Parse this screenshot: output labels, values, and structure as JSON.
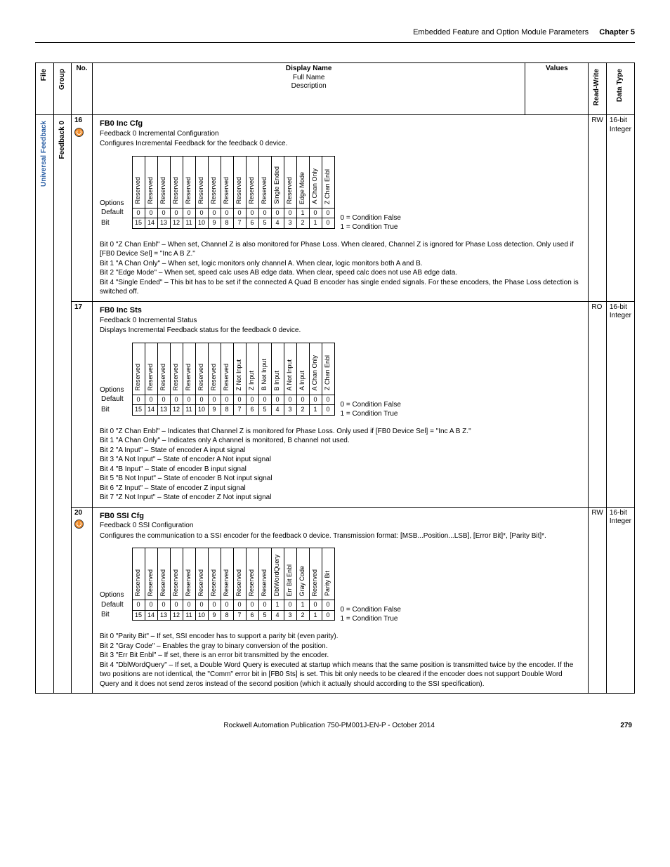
{
  "page_header": {
    "breadcrumb": "Embedded Feature and Option Module Parameters",
    "chapter": "Chapter 5"
  },
  "columns": {
    "file": "File",
    "group": "Group",
    "no": "No.",
    "display_name": "Display Name",
    "full_name": "Full Name",
    "description": "Description",
    "values": "Values",
    "rw": "Read-Write",
    "dt": "Data Type"
  },
  "file_label": "Universal Feedback",
  "group_label": "Feedback 0",
  "cond_legend": {
    "false": "0 = Condition False",
    "true": "1 = Condition True"
  },
  "bit_row_labels": {
    "options": "Options",
    "default": "Default",
    "bit": "Bit"
  },
  "params": [
    {
      "no": "16",
      "restart_icon": true,
      "rw": "RW",
      "dt1": "16-bit",
      "dt2": "Integer",
      "display_name": "FB0 Inc Cfg",
      "full_name": "Feedback 0 Incremental Configuration",
      "description": "Configures Incremental Feedback for the feedback 0 device.",
      "bits": {
        "options": [
          "Reserved",
          "Reserved",
          "Reserved",
          "Reserved",
          "Reserved",
          "Reserved",
          "Reserved",
          "Reserved",
          "Reserved",
          "Reserved",
          "Reserved",
          "Single Ended",
          "Reserved",
          "Edge Mode",
          "A Chan Only",
          "Z Chan Enbl"
        ],
        "default": [
          "0",
          "0",
          "0",
          "0",
          "0",
          "0",
          "0",
          "0",
          "0",
          "0",
          "0",
          "0",
          "0",
          "1",
          "0",
          "0"
        ],
        "bit": [
          "15",
          "14",
          "13",
          "12",
          "11",
          "10",
          "9",
          "8",
          "7",
          "6",
          "5",
          "4",
          "3",
          "2",
          "1",
          "0"
        ]
      },
      "notes": [
        "Bit 0 \"Z Chan Enbl\" – When set, Channel Z is also monitored for Phase Loss. When cleared, Channel Z is ignored for Phase Loss detection. Only used if [FB0 Device Sel] = \"Inc A B Z.\"",
        "Bit 1 \"A Chan Only\" – When set, logic monitors only channel A. When clear, logic monitors both A and B.",
        "Bit 2 \"Edge Mode\" – When set, speed calc uses AB edge data. When clear, speed calc does not use AB edge data.",
        "Bit 4 \"Single Ended\" – This bit has to be set if the connected A Quad B encoder has single ended signals. For these encoders, the Phase Loss detection is switched off."
      ]
    },
    {
      "no": "17",
      "restart_icon": false,
      "rw": "RO",
      "dt1": "16-bit",
      "dt2": "Integer",
      "display_name": "FB0 Inc Sts",
      "full_name": "Feedback 0 Incremental Status",
      "description": "Displays Incremental Feedback status for the feedback 0 device.",
      "bits": {
        "options": [
          "Reserved",
          "Reserved",
          "Reserved",
          "Reserved",
          "Reserved",
          "Reserved",
          "Reserved",
          "Reserved",
          "Z Not Input",
          "Z Input",
          "B Not Input",
          "B Input",
          "A Not Input",
          "A Input",
          "A Chan Only",
          "Z Chan Enbl"
        ],
        "default": [
          "0",
          "0",
          "0",
          "0",
          "0",
          "0",
          "0",
          "0",
          "0",
          "0",
          "0",
          "0",
          "0",
          "0",
          "0",
          "0"
        ],
        "bit": [
          "15",
          "14",
          "13",
          "12",
          "11",
          "10",
          "9",
          "8",
          "7",
          "6",
          "5",
          "4",
          "3",
          "2",
          "1",
          "0"
        ]
      },
      "notes": [
        "Bit 0 \"Z Chan Enbl\" – Indicates that Channel Z is monitored for Phase Loss. Only used if [FB0 Device Sel] = \"Inc A B Z.\"",
        "Bit 1 \"A Chan Only\" – Indicates only A channel is monitored, B channel not used.",
        "Bit 2 \"A Input\" – State of encoder A input signal",
        "Bit 3 \"A Not Input\" – State of encoder A Not input signal",
        "Bit 4 \"B Input\" – State of encoder B input signal",
        "Bit 5 \"B Not Input\" – State of encoder B Not input signal",
        "Bit 6 \"Z Input\" – State of encoder Z input signal",
        "Bit 7 \"Z Not Input\" – State of encoder Z Not input signal"
      ]
    },
    {
      "no": "20",
      "restart_icon": true,
      "rw": "RW",
      "dt1": "16-bit",
      "dt2": "Integer",
      "display_name": "FB0 SSI Cfg",
      "full_name": "Feedback 0 SSI Configuration",
      "description": "Configures the communication to a SSI encoder for the feedback 0 device. Transmission format: [MSB...Position...LSB], [Error Bit]*, [Parity Bit]*.",
      "bits": {
        "options": [
          "Reserved",
          "Reserved",
          "Reserved",
          "Reserved",
          "Reserved",
          "Reserved",
          "Reserved",
          "Reserved",
          "Reserved",
          "Reserved",
          "Reserved",
          "DblWordQuery",
          "Err Bit Enbl",
          "Gray Code",
          "Reserved",
          "Parity Bit"
        ],
        "default": [
          "0",
          "0",
          "0",
          "0",
          "0",
          "0",
          "0",
          "0",
          "0",
          "0",
          "0",
          "1",
          "0",
          "1",
          "0",
          "0"
        ],
        "bit": [
          "15",
          "14",
          "13",
          "12",
          "11",
          "10",
          "9",
          "8",
          "7",
          "6",
          "5",
          "4",
          "3",
          "2",
          "1",
          "0"
        ]
      },
      "notes": [
        "Bit 0 \"Parity Bit\" – If set, SSI encoder has to support a parity bit (even parity).",
        "Bit 2 \"Gray Code\" – Enables the gray to binary conversion of the position.",
        "Bit 3 \"Err Bit Enbl\" – If set, there is an error bit transmitted by the encoder.",
        "Bit 4 \"DblWordQuery\" – If set, a Double Word Query is executed at startup which means that the same position is transmitted twice by the encoder. If the two positions are not identical, the \"Comm\" error bit in [FB0 Sts] is set. This bit only needs to be cleared if the encoder does not support Double Word Query and it does not send zeros instead of the second position (which it actually should according to the SSI specification)."
      ]
    }
  ],
  "footer": {
    "pub": "Rockwell Automation Publication 750-PM001J-EN-P - October 2014",
    "page": "279"
  }
}
